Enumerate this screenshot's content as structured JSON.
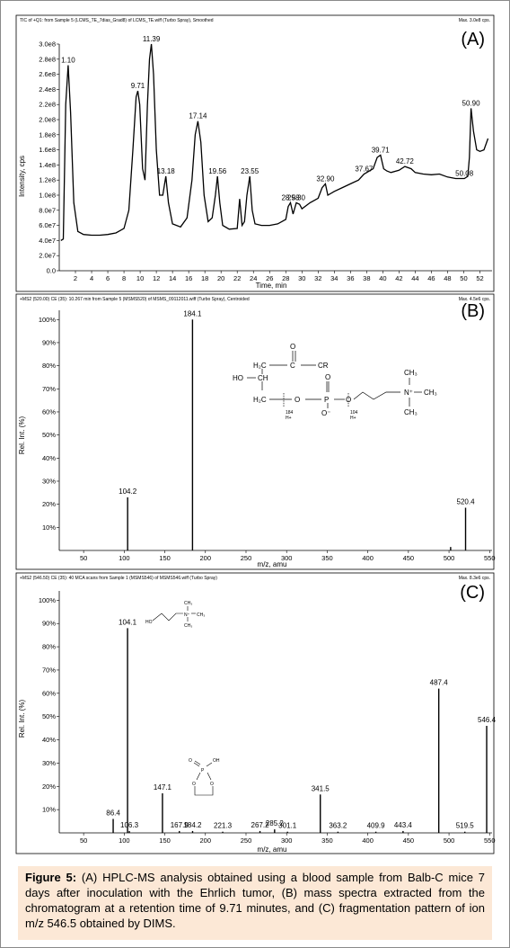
{
  "figure": {
    "caption_label": "Figure 5:",
    "caption_text": " (A) HPLC-MS analysis obtained using a blood sample from Balb-C mice 7 days after inoculation with the Ehrlich tumor, (B) mass spectra extracted from the chromatogram at a retention time of 9.71 minutes, and (C) fragmentation pattern of ion m/z 546.5 obtained by DIMS."
  },
  "colors": {
    "trace": "#000000",
    "background": "#ffffff",
    "caption_bg": "#fce8d6"
  },
  "chart_data": [
    {
      "type": "line",
      "panel_label": "(A)",
      "header_left": "TIC of +Q1: from Sample 5 (LCMS_TE_7dias_Grad8) of LCMS_TE.wiff (Turbo Spray), Smoothed",
      "header_right": "Max. 3.0e8 cps.",
      "xlabel": "Time, min",
      "ylabel": "Intensity, cps",
      "xlim": [
        0,
        53.5
      ],
      "ylim": [
        0,
        300000000.0
      ],
      "x_ticks": [
        2,
        4,
        6,
        8,
        10,
        12,
        14,
        16,
        18,
        20,
        22,
        24,
        26,
        28,
        30,
        32,
        34,
        36,
        38,
        40,
        42,
        44,
        46,
        48,
        50,
        52
      ],
      "x_tick_labels": [
        "2",
        "4",
        "6",
        "8",
        "10",
        "12",
        "14",
        "16",
        "18",
        "20",
        "22",
        "24",
        "26",
        "28",
        "30",
        "32",
        "34",
        "36",
        "38",
        "40",
        "42",
        "44",
        "46",
        "48",
        "50",
        "52"
      ],
      "y_ticks": [
        0,
        20000000.0,
        40000000.0,
        60000000.0,
        80000000.0,
        100000000.0,
        120000000.0,
        140000000.0,
        160000000.0,
        180000000.0,
        200000000.0,
        220000000.0,
        240000000.0,
        260000000.0,
        280000000.0,
        300000000.0
      ],
      "y_tick_labels": [
        "0.0",
        "2.0e7",
        "4.0e7",
        "6.0e7",
        "8.0e7",
        "1.0e8",
        "1.2e8",
        "1.4e8",
        "1.6e8",
        "1.8e8",
        "2.0e8",
        "2.2e8",
        "2.4e8",
        "2.6e8",
        "2.8e8",
        "3.0e8"
      ],
      "series": [
        {
          "x": [
            0.2,
            0.5,
            0.8,
            1.1,
            1.4,
            1.8,
            2.3,
            3,
            4,
            5,
            6,
            7,
            8,
            8.6,
            9.1,
            9.5,
            9.71,
            9.95,
            10.3,
            10.6,
            10.9,
            11.15,
            11.39,
            11.65,
            12,
            12.4,
            12.8,
            13.18,
            13.5,
            14,
            15,
            15.8,
            16.4,
            16.8,
            17.14,
            17.5,
            17.9,
            18.4,
            18.9,
            19.3,
            19.56,
            19.85,
            20.2,
            21,
            22,
            22.3,
            22.6,
            22.9,
            23.2,
            23.55,
            23.85,
            24.2,
            25,
            26,
            27,
            28,
            28.3,
            28.58,
            28.9,
            29.3,
            29.7,
            30,
            31,
            32,
            32.5,
            32.9,
            33.2,
            34,
            35,
            36,
            37,
            37.67,
            38,
            38.8,
            39.3,
            39.71,
            40.1,
            40.5,
            41,
            42,
            42.72,
            43.5,
            44,
            45,
            46,
            47,
            48,
            49,
            50.08,
            50.5,
            50.7,
            50.9,
            51.2,
            51.6,
            52,
            52.5,
            53
          ],
          "y": [
            40000000.0,
            42000000.0,
            220000000.0,
            272000000.0,
            210000000.0,
            90000000.0,
            52000000.0,
            48000000.0,
            47000000.0,
            47000000.0,
            48000000.0,
            50000000.0,
            56000000.0,
            80000000.0,
            160000000.0,
            230000000.0,
            238000000.0,
            220000000.0,
            135000000.0,
            120000000.0,
            220000000.0,
            280000000.0,
            300000000.0,
            260000000.0,
            160000000.0,
            100000000.0,
            100000000.0,
            125000000.0,
            90000000.0,
            62000000.0,
            58000000.0,
            70000000.0,
            120000000.0,
            180000000.0,
            198000000.0,
            170000000.0,
            100000000.0,
            65000000.0,
            70000000.0,
            100000000.0,
            125000000.0,
            90000000.0,
            60000000.0,
            55000000.0,
            56000000.0,
            95000000.0,
            60000000.0,
            65000000.0,
            100000000.0,
            125000000.0,
            80000000.0,
            62000000.0,
            60000000.0,
            60000000.0,
            62000000.0,
            68000000.0,
            85000000.0,
            90000000.0,
            75000000.0,
            90000000.0,
            88000000.0,
            82000000.0,
            90000000.0,
            96000000.0,
            110000000.0,
            115000000.0,
            100000000.0,
            105000000.0,
            110000000.0,
            115000000.0,
            120000000.0,
            128000000.0,
            130000000.0,
            135000000.0,
            150000000.0,
            153000000.0,
            135000000.0,
            132000000.0,
            130000000.0,
            133000000.0,
            138000000.0,
            135000000.0,
            130000000.0,
            128000000.0,
            127000000.0,
            128000000.0,
            124000000.0,
            122000000.0,
            122000000.0,
            125000000.0,
            150000000.0,
            215000000.0,
            185000000.0,
            160000000.0,
            158000000.0,
            160000000.0,
            175000000.0
          ]
        }
      ],
      "peak_labels": [
        {
          "x": 1.1,
          "y": 272000000.0,
          "text": "1.10"
        },
        {
          "x": 9.71,
          "y": 238000000.0,
          "text": "9.71"
        },
        {
          "x": 11.39,
          "y": 300000000.0,
          "text": "11.39"
        },
        {
          "x": 13.18,
          "y": 125000000.0,
          "text": "13.18"
        },
        {
          "x": 17.14,
          "y": 198000000.0,
          "text": "17.14"
        },
        {
          "x": 19.56,
          "y": 125000000.0,
          "text": "19.56"
        },
        {
          "x": 23.55,
          "y": 125000000.0,
          "text": "23.55"
        },
        {
          "x": 28.58,
          "y": 90000000.0,
          "text": "28.58"
        },
        {
          "x": 29.3,
          "y": 90000000.0,
          "text": "29.30"
        },
        {
          "x": 32.9,
          "y": 115000000.0,
          "text": "32.90"
        },
        {
          "x": 37.67,
          "y": 128000000.0,
          "text": "37.67"
        },
        {
          "x": 39.71,
          "y": 153000000.0,
          "text": "39.71"
        },
        {
          "x": 42.72,
          "y": 138000000.0,
          "text": "42.72"
        },
        {
          "x": 50.08,
          "y": 122000000.0,
          "text": "50.08"
        },
        {
          "x": 50.9,
          "y": 215000000.0,
          "text": "50.90"
        }
      ]
    },
    {
      "type": "bar",
      "panel_label": "(B)",
      "header_left": "+MS2 (520.00) CE (35): 10.267 min from Sample 5 (MSMS520) of MSMS_09112011.wiff (Turbo Spray), Centroided",
      "header_right": "Max. 4.5e6 cps.",
      "xlabel": "m/z, amu",
      "ylabel": "Rel. Int. (%)",
      "xlim": [
        20,
        553
      ],
      "ylim": [
        0,
        104
      ],
      "x_ticks": [
        50,
        100,
        150,
        200,
        250,
        300,
        350,
        400,
        450,
        500,
        550
      ],
      "x_tick_labels": [
        "50",
        "100",
        "150",
        "200",
        "250",
        "300",
        "350",
        "400",
        "450",
        "500",
        "550"
      ],
      "y_ticks": [
        10,
        20,
        30,
        40,
        50,
        60,
        70,
        80,
        90,
        100
      ],
      "y_tick_labels": [
        "10%",
        "20%",
        "30%",
        "40%",
        "50%",
        "60%",
        "70%",
        "80%",
        "90%",
        "100%"
      ],
      "peaks": [
        {
          "x": 104.2,
          "y": 23,
          "label": "104.2"
        },
        {
          "x": 184.1,
          "y": 100,
          "label": "184.1"
        },
        {
          "x": 502,
          "y": 1.5,
          "label": ""
        },
        {
          "x": 520.4,
          "y": 18.5,
          "label": "520.4"
        }
      ],
      "structure_labels": [
        "O",
        "H₂C",
        "C",
        "CR",
        "HO",
        "CH",
        "O",
        "H₂C",
        "O",
        "P",
        "O",
        "O⁻",
        "N⁺",
        "CH₃",
        "CH₃",
        "CH₃",
        "184",
        "H+",
        "104",
        "H+"
      ]
    },
    {
      "type": "bar",
      "panel_label": "(C)",
      "header_left": "+MS2 (546.50) CE (35): 40 MCA scans from Sample 1 (MSMS546) of MSMS546.wiff (Turbo Spray)",
      "header_right": "Max. 8.3e6 cps.",
      "xlabel": "m/z, amu",
      "ylabel": "Rel. Int. (%)",
      "xlim": [
        20,
        553
      ],
      "ylim": [
        0,
        104
      ],
      "x_ticks": [
        50,
        100,
        150,
        200,
        250,
        300,
        350,
        400,
        450,
        500,
        550
      ],
      "x_tick_labels": [
        "50",
        "100",
        "150",
        "200",
        "250",
        "300",
        "350",
        "400",
        "450",
        "500",
        "550"
      ],
      "y_ticks": [
        10,
        20,
        30,
        40,
        50,
        60,
        70,
        80,
        90,
        100
      ],
      "y_tick_labels": [
        "10%",
        "20%",
        "30%",
        "40%",
        "50%",
        "60%",
        "70%",
        "80%",
        "90%",
        "100%"
      ],
      "peaks": [
        {
          "x": 86.4,
          "y": 6,
          "label": "86.4"
        },
        {
          "x": 104.1,
          "y": 88,
          "label": "104.1"
        },
        {
          "x": 106.3,
          "y": 0.8,
          "label": "106.3"
        },
        {
          "x": 147.1,
          "y": 17,
          "label": "147.1"
        },
        {
          "x": 167.9,
          "y": 0.8,
          "label": "167.9"
        },
        {
          "x": 184.2,
          "y": 0.8,
          "label": "184.2"
        },
        {
          "x": 221.3,
          "y": 0.5,
          "label": "221.3"
        },
        {
          "x": 267.2,
          "y": 0.8,
          "label": "267.2"
        },
        {
          "x": 285.2,
          "y": 1.5,
          "label": "285.2"
        },
        {
          "x": 301.1,
          "y": 0.5,
          "label": "301.1"
        },
        {
          "x": 341.5,
          "y": 16.5,
          "label": "341.5"
        },
        {
          "x": 363.2,
          "y": 0.5,
          "label": "363.2"
        },
        {
          "x": 409.9,
          "y": 0.5,
          "label": "409.9"
        },
        {
          "x": 443.4,
          "y": 0.8,
          "label": "443.4"
        },
        {
          "x": 487.4,
          "y": 62,
          "label": "487.4"
        },
        {
          "x": 519.5,
          "y": 0.5,
          "label": "519.5"
        },
        {
          "x": 546.4,
          "y": 46,
          "label": "546.4"
        }
      ],
      "structure_labels": [
        "CH₃",
        "HO",
        "N⁺",
        "CH₃",
        "CH₃",
        "O",
        "OH",
        "P",
        "O",
        "O"
      ]
    }
  ]
}
